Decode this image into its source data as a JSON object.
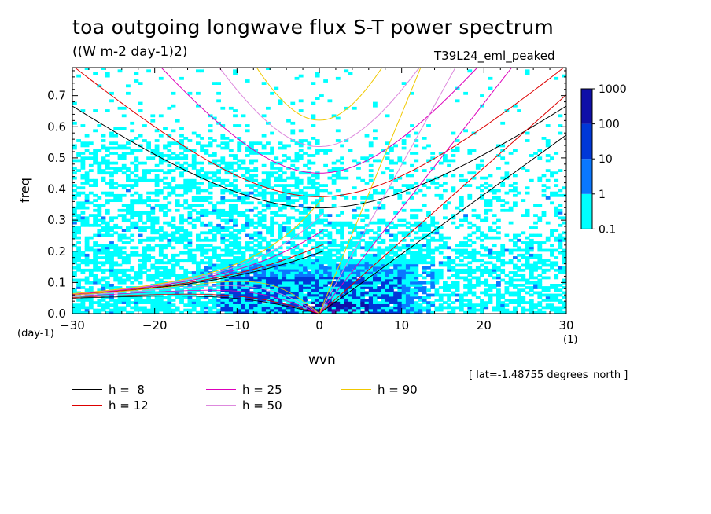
{
  "title": "toa outgoing longwave flux S-T power spectrum",
  "units_label": "((W m-2 day-1)2)",
  "run_label": "T39L24_eml_peaked",
  "lat_note": "[ lat=-1.48755 degrees_north ]",
  "chart_data": {
    "type": "heatmap",
    "xlabel": "wvn",
    "ylabel": "freq",
    "x_unit": "(1)",
    "y_unit": "(day-1)",
    "xlim": [
      -30,
      30
    ],
    "ylim": [
      0,
      0.79
    ],
    "x_ticks": [
      "-30",
      "-20",
      "-10",
      "0",
      "10",
      "20",
      "30"
    ],
    "y_ticks": [
      "0.0",
      "0.1",
      "0.2",
      "0.3",
      "0.4",
      "0.5",
      "0.6",
      "0.7"
    ],
    "colorbar": {
      "labels": [
        "0.1",
        "1",
        "10",
        "100",
        "1000"
      ],
      "colors": [
        "#00ffff",
        "#0a78ff",
        "#0038d8",
        "#1010a8",
        "#4a10a8"
      ]
    },
    "dispersion_curves": [
      {
        "label": "h =  8",
        "h": 8,
        "color": "#000000"
      },
      {
        "label": "h = 12",
        "h": 12,
        "color": "#dd0000"
      },
      {
        "label": "h = 25",
        "h": 25,
        "color": "#dd00bb"
      },
      {
        "label": "h = 50",
        "h": 50,
        "color": "#dd88dd"
      },
      {
        "label": "h = 90",
        "h": 90,
        "color": "#f0c800"
      }
    ]
  }
}
